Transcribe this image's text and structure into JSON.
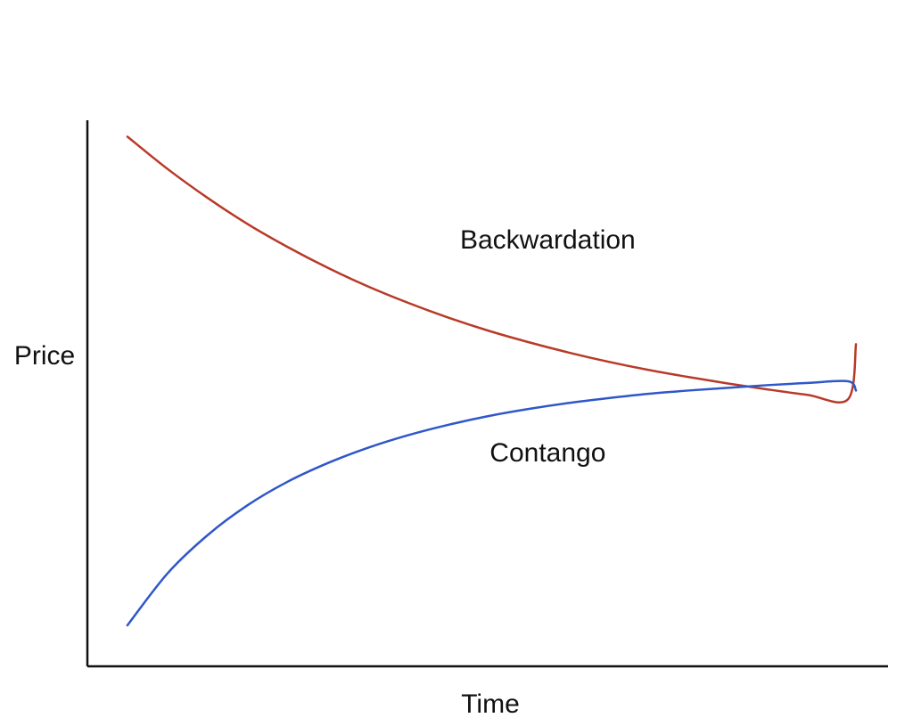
{
  "chart_data": {
    "type": "line",
    "title": "",
    "xlabel": "Time",
    "ylabel": "Price",
    "xlim": [
      0,
      10
    ],
    "ylim": [
      0,
      100
    ],
    "grid": false,
    "legend": "none",
    "series": [
      {
        "name": "Backwardation",
        "color": "#b83a28",
        "x": [
          0.5,
          1,
          1.5,
          2,
          2.5,
          3,
          3.5,
          4,
          4.5,
          5,
          5.5,
          6,
          6.5,
          7,
          7.5,
          8,
          8.5,
          9,
          9.5,
          10
        ],
        "y": [
          97,
          91.1,
          85.8,
          81.0,
          76.8,
          73.0,
          69.6,
          66.6,
          63.9,
          61.5,
          59.4,
          57.5,
          55.8,
          54.3,
          53.0,
          51.8,
          50.7,
          49.7,
          48.9,
          58.3
        ]
      },
      {
        "name": "Contango",
        "color": "#2f57c8",
        "x": [
          0.5,
          1,
          1.5,
          2,
          2.5,
          3,
          3.5,
          4,
          4.5,
          5,
          5.5,
          6,
          6.5,
          7,
          7.5,
          8,
          8.5,
          9,
          9.5,
          10
        ],
        "y": [
          7.5,
          17.0,
          24.0,
          29.5,
          33.8,
          37.2,
          40.0,
          42.3,
          44.2,
          45.8,
          47.1,
          48.2,
          49.1,
          49.9,
          50.5,
          51.0,
          51.5,
          51.9,
          52.2,
          50.0
        ]
      }
    ],
    "annotations": [
      {
        "text": "Backwardation",
        "x": 5.75,
        "y": 76.5
      },
      {
        "text": "Contango",
        "x": 5.75,
        "y": 37.5
      }
    ]
  }
}
